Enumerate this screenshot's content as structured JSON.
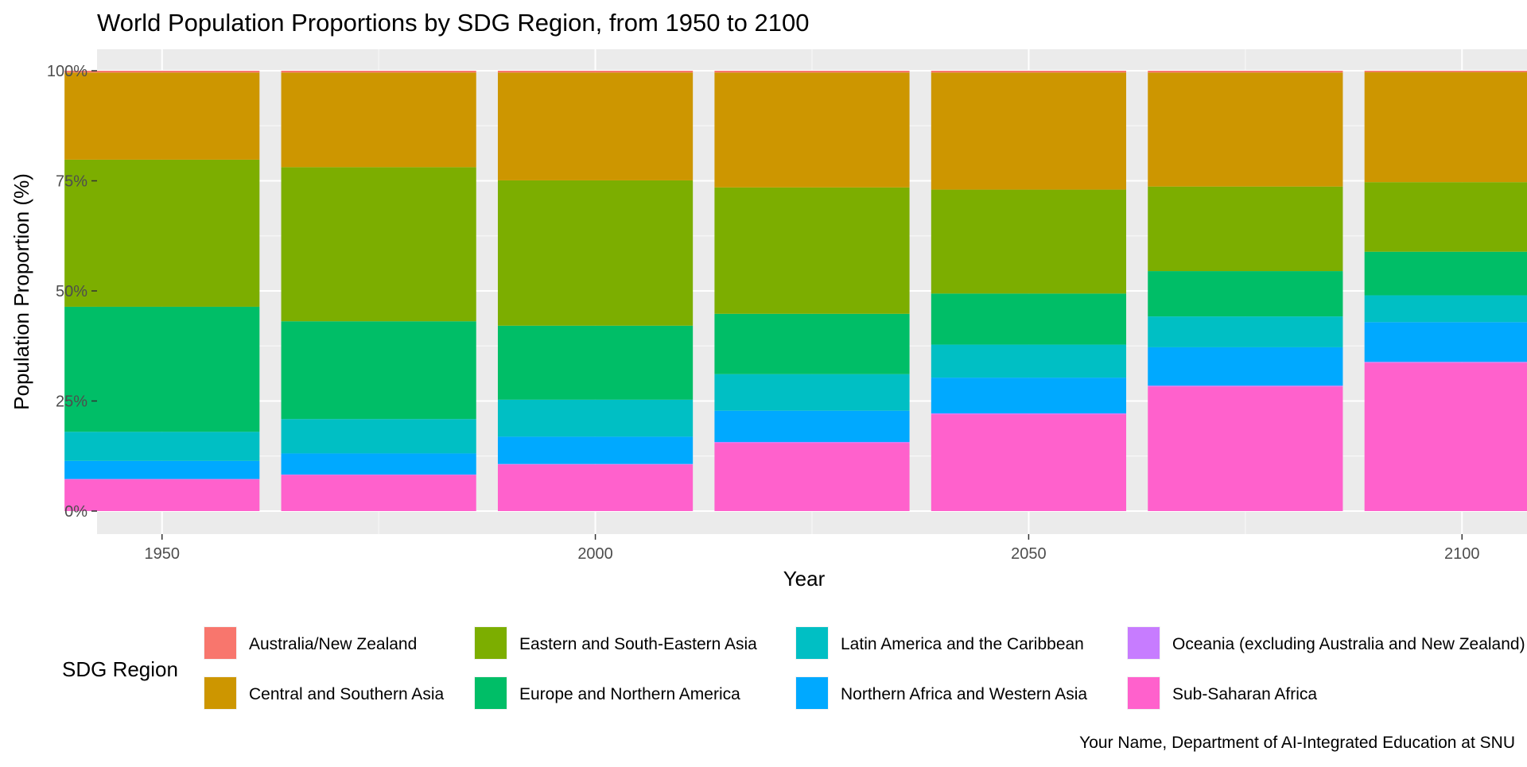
{
  "chart_data": {
    "type": "bar",
    "stacked": true,
    "title": "World Population Proportions by SDG Region, from 1950 to 2100",
    "xlabel": "Year",
    "ylabel": "Population Proportion (%)",
    "caption": "Your Name, Department of AI-Integrated Education at SNU",
    "legend_title": "SDG Region",
    "legend_position": "bottom",
    "grid": true,
    "x": [
      1950,
      1975,
      2000,
      2025,
      2050,
      2075,
      2100
    ],
    "xlim": [
      1942.5,
      2107.5
    ],
    "ylim": [
      0,
      100
    ],
    "x_ticks": [
      1950,
      2000,
      2050,
      2100
    ],
    "x_tick_labels": [
      "1950",
      "2000",
      "2050",
      "2100"
    ],
    "y_ticks": [
      0,
      25,
      50,
      75,
      100
    ],
    "y_tick_labels": [
      "0%",
      "25%",
      "50%",
      "75%",
      "100%"
    ],
    "series": [
      {
        "name": "Sub-Saharan Africa",
        "color": "#FF61CC",
        "values": [
          7.2,
          8.2,
          10.6,
          15.5,
          22.0,
          28.3,
          33.7
        ]
      },
      {
        "name": "Oceania (excluding Australia and New Zealand)",
        "color": "#C77CFF",
        "values": [
          0.1,
          0.1,
          0.1,
          0.2,
          0.2,
          0.2,
          0.2
        ]
      },
      {
        "name": "Northern Africa and Western Asia",
        "color": "#00A9FF",
        "values": [
          4.1,
          4.8,
          6.2,
          7.1,
          8.1,
          8.7,
          9.0
        ]
      },
      {
        "name": "Latin America and the Caribbean",
        "color": "#00BFC4",
        "values": [
          6.6,
          7.8,
          8.4,
          8.3,
          7.5,
          7.0,
          6.1
        ]
      },
      {
        "name": "Europe and Northern America",
        "color": "#00BE67",
        "values": [
          28.4,
          22.2,
          16.8,
          13.7,
          11.6,
          10.3,
          9.9
        ]
      },
      {
        "name": "Eastern and South-Eastern Asia",
        "color": "#7CAE00",
        "values": [
          33.4,
          35.0,
          33.0,
          28.7,
          23.6,
          19.2,
          15.8
        ]
      },
      {
        "name": "Central and Southern Asia",
        "color": "#CD9600",
        "values": [
          19.8,
          21.5,
          24.5,
          26.1,
          26.6,
          25.9,
          25.0
        ]
      },
      {
        "name": "Australia/New Zealand",
        "color": "#F8766D",
        "values": [
          0.5,
          0.5,
          0.5,
          0.5,
          0.5,
          0.5,
          0.4
        ]
      }
    ],
    "legend_order": [
      "Australia/New Zealand",
      "Central and Southern Asia",
      "Eastern and South-Eastern Asia",
      "Europe and Northern America",
      "Latin America and the Caribbean",
      "Northern Africa and Western Asia",
      "Oceania (excluding Australia and New Zealand)",
      "Sub-Saharan Africa"
    ]
  }
}
